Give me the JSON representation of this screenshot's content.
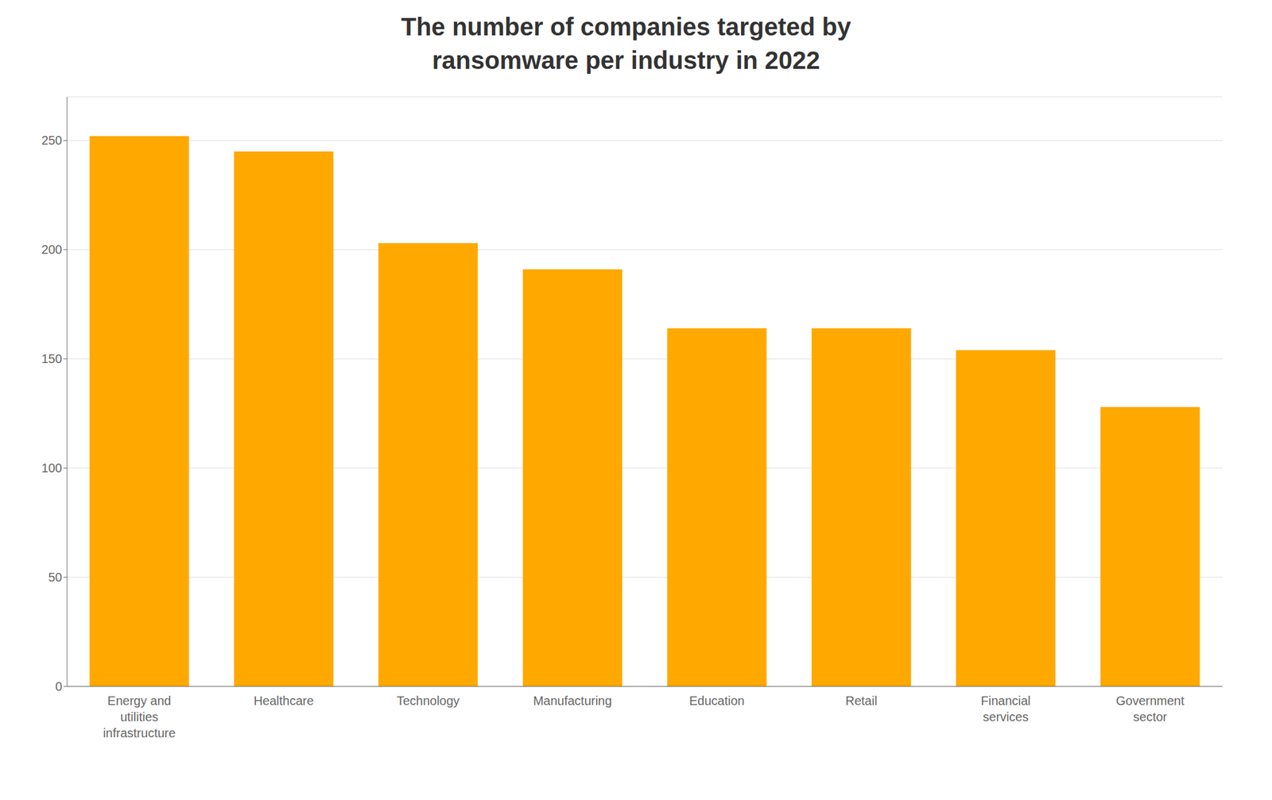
{
  "chart_data": {
    "type": "bar",
    "title": "The number of companies targeted by\nransomware per industry in 2022",
    "categories": [
      "Energy and\nutilities\ninfrastructure",
      "Healthcare",
      "Technology",
      "Manufacturing",
      "Education",
      "Retail",
      "Financial\nservices",
      "Government\nsector"
    ],
    "values": [
      252,
      245,
      203,
      191,
      164,
      164,
      154,
      128
    ],
    "color": "#FFA800",
    "ylim": [
      0,
      270
    ],
    "yticks": [
      0,
      50,
      100,
      150,
      200,
      250
    ],
    "grid": true
  }
}
